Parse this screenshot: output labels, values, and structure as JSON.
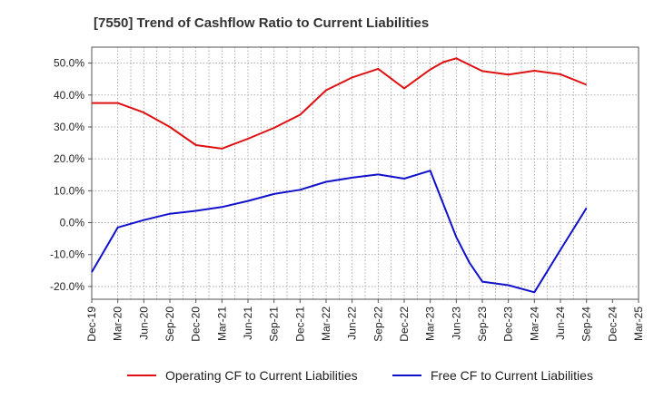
{
  "chart_data": {
    "type": "line",
    "title": "[7550]  Trend of Cashflow Ratio to Current Liabilities",
    "xlabel": "",
    "ylabel": "",
    "categories": [
      "Dec-19",
      "Mar-20",
      "Jun-20",
      "Sep-20",
      "Dec-20",
      "Mar-21",
      "Jun-21",
      "Sep-21",
      "Dec-21",
      "Mar-22",
      "Jun-22",
      "Sep-22",
      "Dec-22",
      "Mar-23",
      "Jun-23",
      "Sep-23",
      "Dec-23",
      "Mar-24",
      "Jun-24",
      "Sep-24",
      "Dec-24",
      "Mar-25"
    ],
    "ylim": [
      -24,
      55
    ],
    "yticks": [
      -20,
      -10,
      0,
      10,
      20,
      30,
      40,
      50
    ],
    "ytick_labels": [
      "-20.0%",
      "-10.0%",
      "0.0%",
      "10.0%",
      "20.0%",
      "30.0%",
      "40.0%",
      "50.0%"
    ],
    "grid": true,
    "legend_position": "bottom",
    "x_points": [
      0,
      1,
      1.5,
      2,
      2.5,
      3,
      3.5,
      4,
      4.5,
      5,
      5.5,
      6,
      6.5,
      7,
      7.5,
      8,
      8.5,
      9,
      9.5,
      10,
      10.5,
      11,
      11.5,
      12,
      12.5,
      13,
      13.5,
      14,
      14.5,
      15,
      15.5,
      16,
      16.5,
      17,
      17.5,
      18,
      18.5,
      19
    ],
    "series": [
      {
        "name": "Operating CF to Current Liabilities",
        "color": "#dd1111",
        "x": [
          0,
          1,
          2,
          3,
          4,
          5,
          6,
          7,
          8,
          9,
          10,
          11,
          12,
          13,
          13.5,
          14,
          15,
          16,
          17,
          18,
          19
        ],
        "values": [
          37.5,
          37.5,
          34.5,
          30.0,
          24.3,
          23.2,
          26.3,
          29.7,
          33.8,
          41.5,
          45.5,
          48.2,
          42.1,
          48.0,
          50.3,
          51.5,
          47.5,
          46.4,
          47.6,
          46.5,
          43.2
        ]
      },
      {
        "name": "Free CF to Current Liabilities",
        "color": "#1111cc",
        "x": [
          0,
          1,
          2,
          3,
          4,
          5,
          6,
          7,
          8,
          9,
          10,
          11,
          12,
          13,
          14,
          14.5,
          15,
          16,
          17,
          18,
          19
        ],
        "values": [
          -15.5,
          -1.5,
          0.8,
          2.8,
          3.7,
          4.9,
          6.8,
          9.0,
          10.3,
          12.8,
          14.1,
          15.1,
          13.8,
          16.3,
          -4.5,
          -12.5,
          -18.5,
          -19.6,
          -21.8,
          -8.5,
          4.6
        ]
      }
    ]
  }
}
